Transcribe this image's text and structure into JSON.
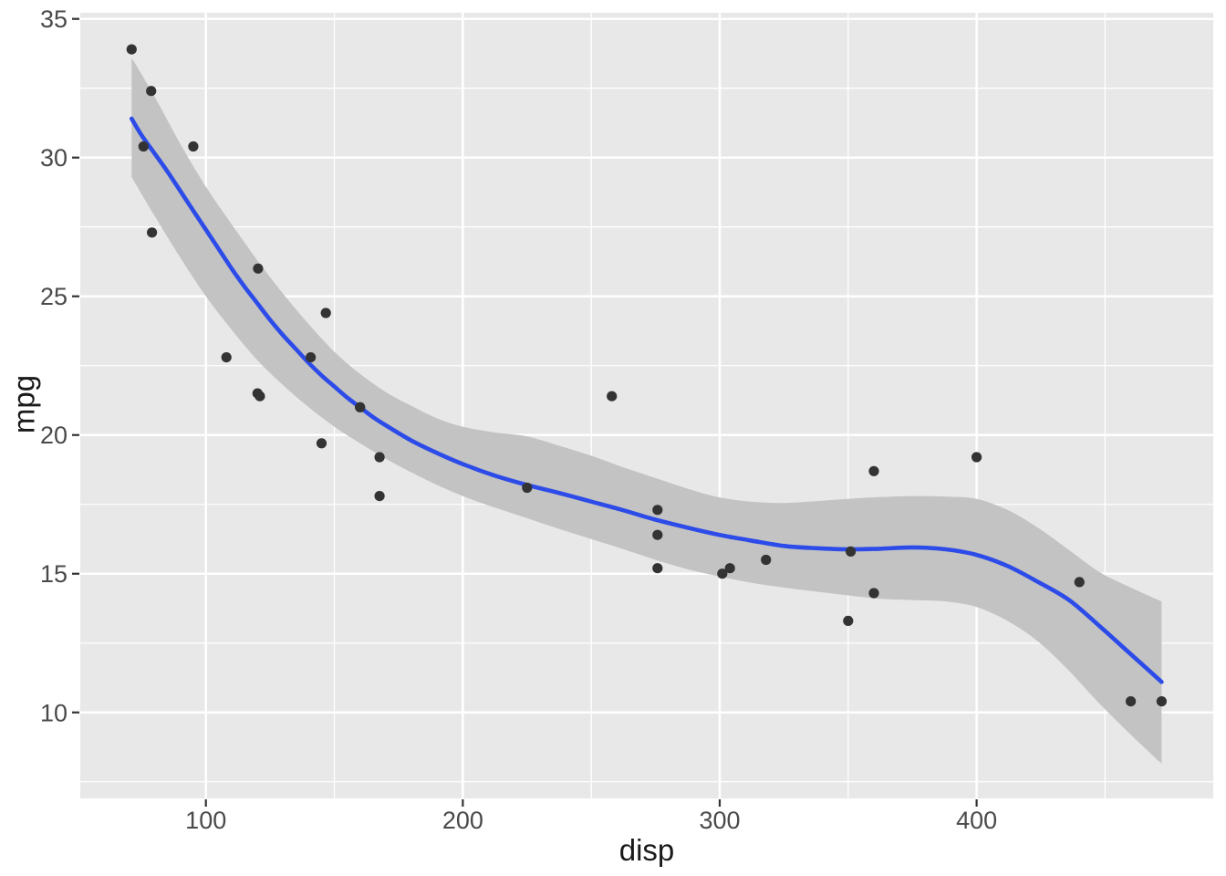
{
  "chart_data": {
    "type": "scatter",
    "title": "",
    "xlabel": "disp",
    "ylabel": "mpg",
    "legend": "none",
    "grid": "white major and minor gridlines on gray panel",
    "xlim": [
      51.1,
      492.1
    ],
    "ylim": [
      6.9,
      35.22
    ],
    "x_ticks": {
      "major": [
        100,
        200,
        300,
        400
      ],
      "minor": [
        150,
        250,
        350,
        450
      ]
    },
    "y_ticks": {
      "major": [
        10,
        15,
        20,
        25,
        30,
        35
      ],
      "minor": [
        7.5,
        12.5,
        17.5,
        22.5,
        27.5,
        32.5
      ]
    },
    "points": [
      [
        160,
        21.0
      ],
      [
        160,
        21.0
      ],
      [
        108,
        22.8
      ],
      [
        258,
        21.4
      ],
      [
        360,
        18.7
      ],
      [
        225,
        18.1
      ],
      [
        360,
        14.3
      ],
      [
        146.7,
        24.4
      ],
      [
        140.8,
        22.8
      ],
      [
        167.6,
        19.2
      ],
      [
        167.6,
        17.8
      ],
      [
        275.8,
        16.4
      ],
      [
        275.8,
        17.3
      ],
      [
        275.8,
        15.2
      ],
      [
        472,
        10.4
      ],
      [
        460,
        10.4
      ],
      [
        440,
        14.7
      ],
      [
        78.7,
        32.4
      ],
      [
        75.7,
        30.4
      ],
      [
        71.1,
        33.9
      ],
      [
        120.1,
        21.5
      ],
      [
        318,
        15.5
      ],
      [
        304,
        15.2
      ],
      [
        350,
        13.3
      ],
      [
        400,
        19.2
      ],
      [
        79,
        27.3
      ],
      [
        120.3,
        26.0
      ],
      [
        95.1,
        30.4
      ],
      [
        351,
        15.8
      ],
      [
        145,
        19.7
      ],
      [
        301,
        15.0
      ],
      [
        121,
        21.4
      ]
    ],
    "smooth_line": {
      "method": "loess",
      "series": [
        [
          71.1,
          31.4
        ],
        [
          75,
          30.8
        ],
        [
          80,
          30.15
        ],
        [
          85,
          29.5
        ],
        [
          90,
          28.8
        ],
        [
          95,
          28.1
        ],
        [
          100,
          27.4
        ],
        [
          105,
          26.7
        ],
        [
          110,
          26.0
        ],
        [
          115,
          25.35
        ],
        [
          120,
          24.75
        ],
        [
          125,
          24.15
        ],
        [
          130,
          23.6
        ],
        [
          135,
          23.1
        ],
        [
          140,
          22.6
        ],
        [
          145,
          22.15
        ],
        [
          150,
          21.75
        ],
        [
          155,
          21.35
        ],
        [
          160,
          21.0
        ],
        [
          165,
          20.65
        ],
        [
          170,
          20.35
        ],
        [
          180,
          19.8
        ],
        [
          190,
          19.35
        ],
        [
          200,
          18.95
        ],
        [
          212,
          18.55
        ],
        [
          225,
          18.2
        ],
        [
          238,
          17.9
        ],
        [
          250,
          17.6
        ],
        [
          262,
          17.3
        ],
        [
          275,
          16.95
        ],
        [
          288,
          16.65
        ],
        [
          300,
          16.4
        ],
        [
          312,
          16.2
        ],
        [
          325,
          16.0
        ],
        [
          338,
          15.92
        ],
        [
          350,
          15.88
        ],
        [
          362,
          15.9
        ],
        [
          375,
          15.95
        ],
        [
          388,
          15.88
        ],
        [
          400,
          15.68
        ],
        [
          412,
          15.28
        ],
        [
          424,
          14.7
        ],
        [
          436,
          14.05
        ],
        [
          448,
          13.1
        ],
        [
          460,
          12.1
        ],
        [
          472,
          11.1
        ]
      ]
    },
    "confidence_band": [
      [
        71.1,
        29.3,
        33.6
      ],
      [
        80,
        27.9,
        32.2
      ],
      [
        90,
        26.4,
        30.5
      ],
      [
        100,
        25.0,
        28.95
      ],
      [
        110,
        23.8,
        27.6
      ],
      [
        120,
        22.7,
        26.3
      ],
      [
        130,
        21.8,
        25.1
      ],
      [
        140,
        21.0,
        24.0
      ],
      [
        150,
        20.3,
        23.0
      ],
      [
        160,
        19.7,
        22.2
      ],
      [
        170,
        19.15,
        21.55
      ],
      [
        180,
        18.65,
        21.05
      ],
      [
        190,
        18.2,
        20.6
      ],
      [
        200,
        17.8,
        20.3
      ],
      [
        212,
        17.4,
        20.1
      ],
      [
        225,
        17.0,
        19.95
      ],
      [
        238,
        16.6,
        19.6
      ],
      [
        250,
        16.25,
        19.25
      ],
      [
        262,
        15.9,
        18.85
      ],
      [
        275,
        15.5,
        18.45
      ],
      [
        288,
        15.15,
        18.05
      ],
      [
        300,
        14.9,
        17.75
      ],
      [
        312,
        14.68,
        17.6
      ],
      [
        325,
        14.5,
        17.55
      ],
      [
        338,
        14.35,
        17.62
      ],
      [
        350,
        14.22,
        17.7
      ],
      [
        362,
        14.1,
        17.76
      ],
      [
        375,
        14.05,
        17.8
      ],
      [
        388,
        14.0,
        17.78
      ],
      [
        400,
        13.8,
        17.7
      ],
      [
        412,
        13.3,
        17.3
      ],
      [
        424,
        12.55,
        16.65
      ],
      [
        436,
        11.5,
        15.85
      ],
      [
        448,
        10.3,
        15.05
      ],
      [
        460,
        9.2,
        14.5
      ],
      [
        472,
        8.15,
        14.0
      ]
    ],
    "colors": {
      "point": "#333333",
      "line": "#2C4BE8",
      "band": "#C3C3C3",
      "panel": "#E8E8E8",
      "gridline": "#FFFFFF",
      "tick_mark": "#333333",
      "tick_text": "#4A4A4A",
      "axis_title": "#1A1A1A",
      "background": "#FFFFFF"
    }
  }
}
